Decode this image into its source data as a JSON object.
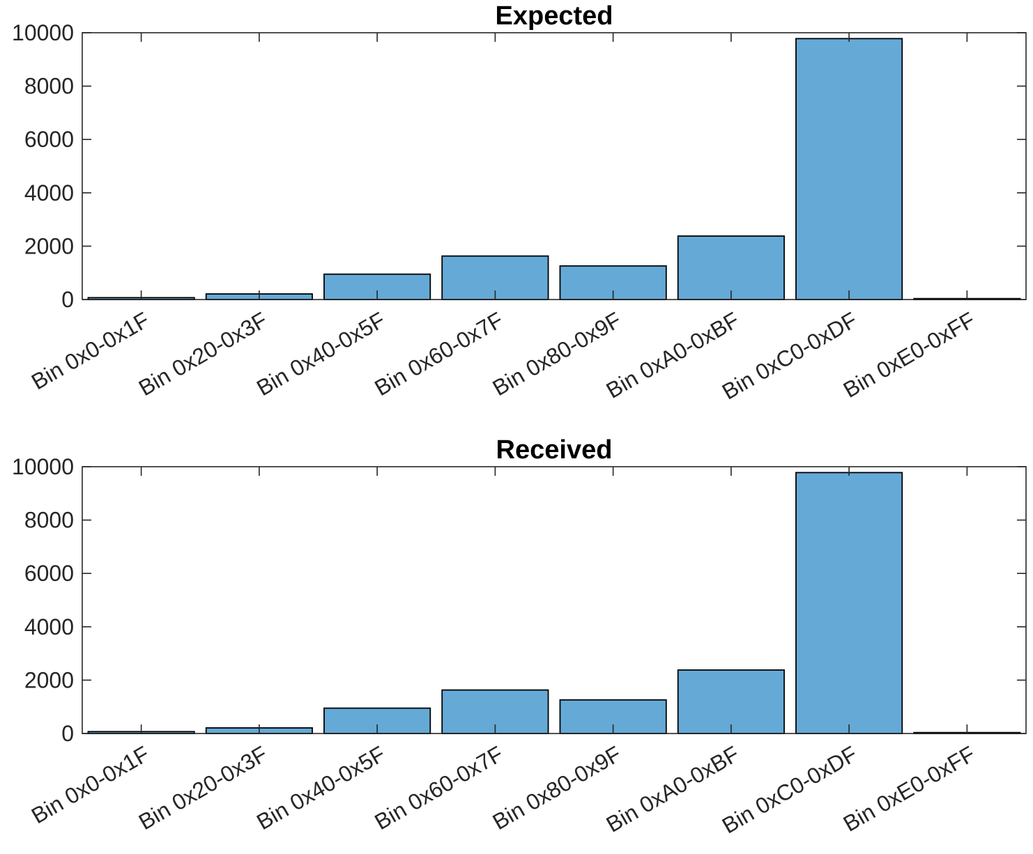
{
  "chart_data": [
    {
      "type": "bar",
      "title": "Expected",
      "categories": [
        "Bin 0x0-0x1F",
        "Bin 0x20-0x3F",
        "Bin 0x40-0x5F",
        "Bin 0x60-0x7F",
        "Bin 0x80-0x9F",
        "Bin 0xA0-0xBF",
        "Bin 0xC0-0xDF",
        "Bin 0xE0-0xFF"
      ],
      "values": [
        70,
        210,
        950,
        1630,
        1260,
        2380,
        9780,
        35
      ],
      "ylim": [
        0,
        10000
      ],
      "yticks": [
        "0",
        "2000",
        "4000",
        "6000",
        "8000",
        "10000"
      ],
      "xlabel": "",
      "ylabel": "",
      "bar_color": "#65a9d7",
      "grid": false,
      "legend": "none"
    },
    {
      "type": "bar",
      "title": "Received",
      "categories": [
        "Bin 0x0-0x1F",
        "Bin 0x20-0x3F",
        "Bin 0x40-0x5F",
        "Bin 0x60-0x7F",
        "Bin 0x80-0x9F",
        "Bin 0xA0-0xBF",
        "Bin 0xC0-0xDF",
        "Bin 0xE0-0xFF"
      ],
      "values": [
        70,
        210,
        950,
        1630,
        1260,
        2380,
        9780,
        35
      ],
      "ylim": [
        0,
        10000
      ],
      "yticks": [
        "0",
        "2000",
        "4000",
        "6000",
        "8000",
        "10000"
      ],
      "xlabel": "",
      "ylabel": "",
      "bar_color": "#65a9d7",
      "grid": false,
      "legend": "none"
    }
  ]
}
